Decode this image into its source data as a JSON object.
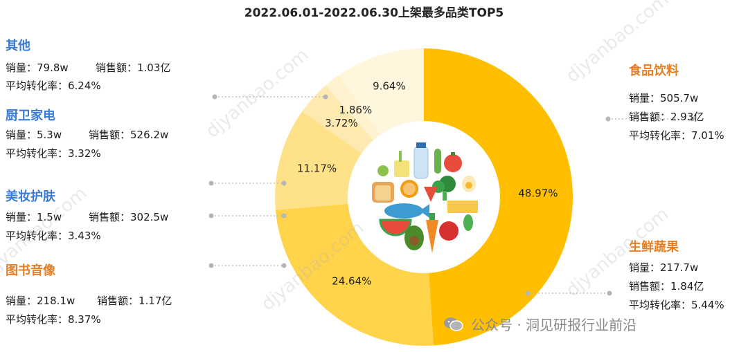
{
  "title": "2022.06.01-2022.06.30上架最多品类TOP5",
  "categories": [
    {
      "name": "其他",
      "sales_label": "销量：79.8w",
      "revenue_label": "销售额：1.03亿",
      "conversion_label": "平均转化率：6.24%"
    },
    {
      "name": "厨卫家电",
      "sales_label": "销量：5.3w",
      "revenue_label": "销售额：526.2w",
      "conversion_label": "平均转化率：3.32%"
    },
    {
      "name": "美妆护肤",
      "sales_label": "销量：1.5w",
      "revenue_label": "销售额：302.5w",
      "conversion_label": "平均转化率：3.43%"
    },
    {
      "name": "图书音像",
      "sales_label": "销量：218.1w",
      "revenue_label": "销售额：1.17亿",
      "conversion_label": "平均转化率：8.37%"
    },
    {
      "name": "食品饮料",
      "sales_label": "销量：505.7w",
      "revenue_label": "销售额：2.93亿",
      "conversion_label": "平均转化率：7.01%"
    },
    {
      "name": "生鲜蔬果",
      "sales_label": "销量：217.7w",
      "revenue_label": "销售额：1.84亿",
      "conversion_label": "平均转化率：5.44%"
    }
  ],
  "watermark": "djyanbao.com",
  "footer": {
    "icon": "wechat-icon",
    "text": "公众号 · 洞见研报行业前沿"
  },
  "colors": {
    "blue_label": "#3a7bd5",
    "orange_label": "#e87e22",
    "slice_main": "#ffbf00",
    "slice_2": "#ffd34a",
    "slice_3": "#fee189",
    "slice_4": "#feeab0",
    "slice_5": "#fff2cf",
    "slice_6": "#fff6de"
  },
  "chart_data": {
    "type": "pie",
    "title": "2022.06.01-2022.06.30上架最多品类TOP5",
    "donut": true,
    "start_at_top_clockwise": true,
    "slices": [
      {
        "name": "食品饮料",
        "value": 48.97,
        "label": "48.97%",
        "color": "#ffbf00"
      },
      {
        "name": "生鲜蔬果",
        "value": 24.64,
        "label": "24.64%",
        "color": "#ffd34a"
      },
      {
        "name": "图书音像",
        "value": 11.17,
        "label": "11.17%",
        "color": "#fee189"
      },
      {
        "name": "美妆护肤",
        "value": 3.72,
        "label": "3.72%",
        "color": "#feeab0"
      },
      {
        "name": "厨卫家电",
        "value": 1.86,
        "label": "1.86%",
        "color": "#fff2cf"
      },
      {
        "name": "其他",
        "value": 9.64,
        "label": "9.64%",
        "color": "#fff6de"
      }
    ]
  }
}
